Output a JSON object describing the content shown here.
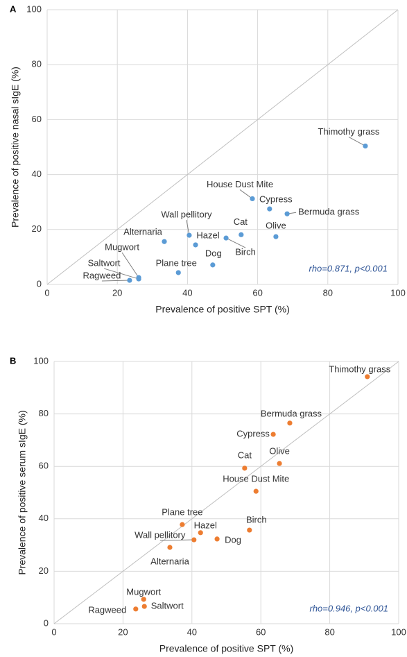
{
  "chart_data": [
    {
      "type": "scatter",
      "panel_label": "A",
      "x_label": "Prevalence of positive SPT (%)",
      "y_label": "Prevalence of positive nasal sIgE (%)",
      "annotation": "rho=0.871, p<0.001",
      "color": "#5b9bd5",
      "labels": [
        "Thimothy grass",
        "House Dust Mite",
        "Cypress",
        "Bermuda grass",
        "Cat",
        "Olive",
        "Wall pellitory",
        "Hazel",
        "Birch",
        "Alternaria",
        "Dog",
        "Plane tree",
        "Mugwort",
        "Saltwort",
        "Ragweed"
      ],
      "x": [
        90.7,
        58.5,
        63.4,
        68.4,
        55.3,
        65.2,
        40.5,
        42.3,
        51.0,
        33.4,
        47.2,
        37.4,
        26.1,
        26.1,
        23.5
      ],
      "values": [
        50.4,
        31.2,
        27.5,
        25.7,
        18.1,
        17.4,
        17.9,
        14.4,
        16.9,
        15.6,
        7.1,
        4.3,
        2.5,
        2.0,
        1.5
      ],
      "xlim": [
        0,
        100
      ],
      "ylim": [
        0,
        100
      ],
      "xticks": [
        0,
        20,
        40,
        60,
        80,
        100
      ],
      "yticks": [
        0,
        20,
        40,
        60,
        80,
        100
      ],
      "grid": true
    },
    {
      "type": "scatter",
      "panel_label": "B",
      "x_label": "Prevalence of positive SPT (%)",
      "y_label": "Prevalence of positive serum sIgE (%)",
      "annotation": "rho=0.946, p<0.001",
      "color": "#ed7d31",
      "labels": [
        "Thimothy grass",
        "Bermuda grass",
        "Cypress",
        "Cat",
        "Olive",
        "House Dust Mite",
        "Plane tree",
        "Birch",
        "Hazel",
        "Wall pellitory",
        "Dog",
        "Alternaria",
        "Mugwort",
        "Saltwort",
        "Ragweed"
      ],
      "x": [
        90.9,
        68.4,
        63.6,
        55.3,
        65.4,
        58.6,
        37.2,
        56.7,
        42.5,
        40.6,
        47.3,
        33.6,
        26.0,
        26.2,
        23.7
      ],
      "values": [
        94.2,
        76.5,
        72.2,
        59.3,
        61.1,
        50.5,
        37.8,
        35.7,
        34.7,
        32.0,
        32.3,
        29.1,
        9.3,
        6.6,
        5.6
      ],
      "xlim": [
        0,
        100
      ],
      "ylim": [
        0,
        100
      ],
      "xticks": [
        0,
        20,
        40,
        60,
        80,
        100
      ],
      "yticks": [
        0,
        20,
        40,
        60,
        80,
        100
      ],
      "grid": true
    }
  ]
}
